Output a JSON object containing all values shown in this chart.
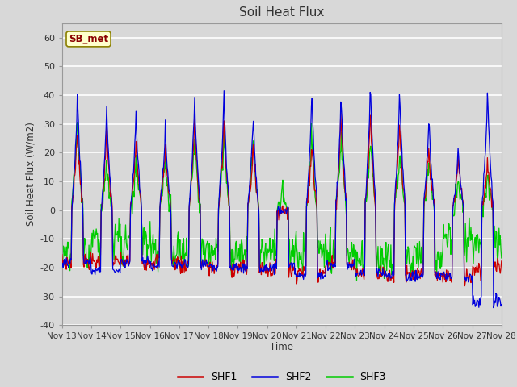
{
  "title": "Soil Heat Flux",
  "ylabel": "Soil Heat Flux (W/m2)",
  "xlabel": "Time",
  "ylim": [
    -40,
    65
  ],
  "yticks": [
    -40,
    -30,
    -20,
    -10,
    0,
    10,
    20,
    30,
    40,
    50,
    60
  ],
  "bg_color": "#d8d8d8",
  "plot_bg_color": "#d8d8d8",
  "grid_color": "#ffffff",
  "colors": {
    "SHF1": "#cc0000",
    "SHF2": "#0000dd",
    "SHF3": "#00cc00"
  },
  "legend_label": "SB_met",
  "x_start_day": 13,
  "x_end_day": 28,
  "x_tick_days": [
    13,
    14,
    15,
    16,
    17,
    18,
    19,
    20,
    21,
    22,
    23,
    24,
    25,
    26,
    27,
    28
  ]
}
